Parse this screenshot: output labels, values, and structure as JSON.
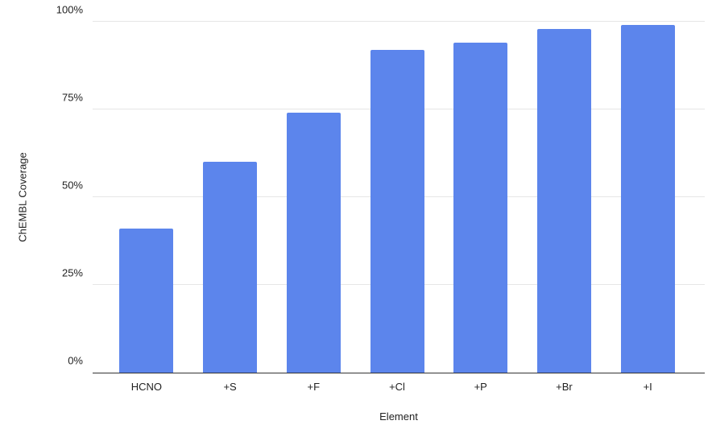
{
  "chart_data": {
    "type": "bar",
    "title": "",
    "xlabel": "Element",
    "ylabel": "ChEMBL Coverage",
    "categories": [
      "HCNO",
      "+S",
      "+F",
      "+Cl",
      "+P",
      "+Br",
      "+I"
    ],
    "values": [
      41,
      60,
      74,
      92,
      94,
      98,
      99
    ],
    "ylim": [
      0,
      100
    ],
    "yticks": [
      {
        "label": "0%",
        "value": 0
      },
      {
        "label": "25%",
        "value": 25
      },
      {
        "label": "50%",
        "value": 50
      },
      {
        "label": "75%",
        "value": 75
      },
      {
        "label": "100%",
        "value": 100
      }
    ],
    "grid": true,
    "legend_position": "none",
    "bar_color": "#5c85ec",
    "gridline_color": "#e6e6e6",
    "axis_line_color": "#333333",
    "text_color": "#222222",
    "background_color": "#ffffff"
  }
}
